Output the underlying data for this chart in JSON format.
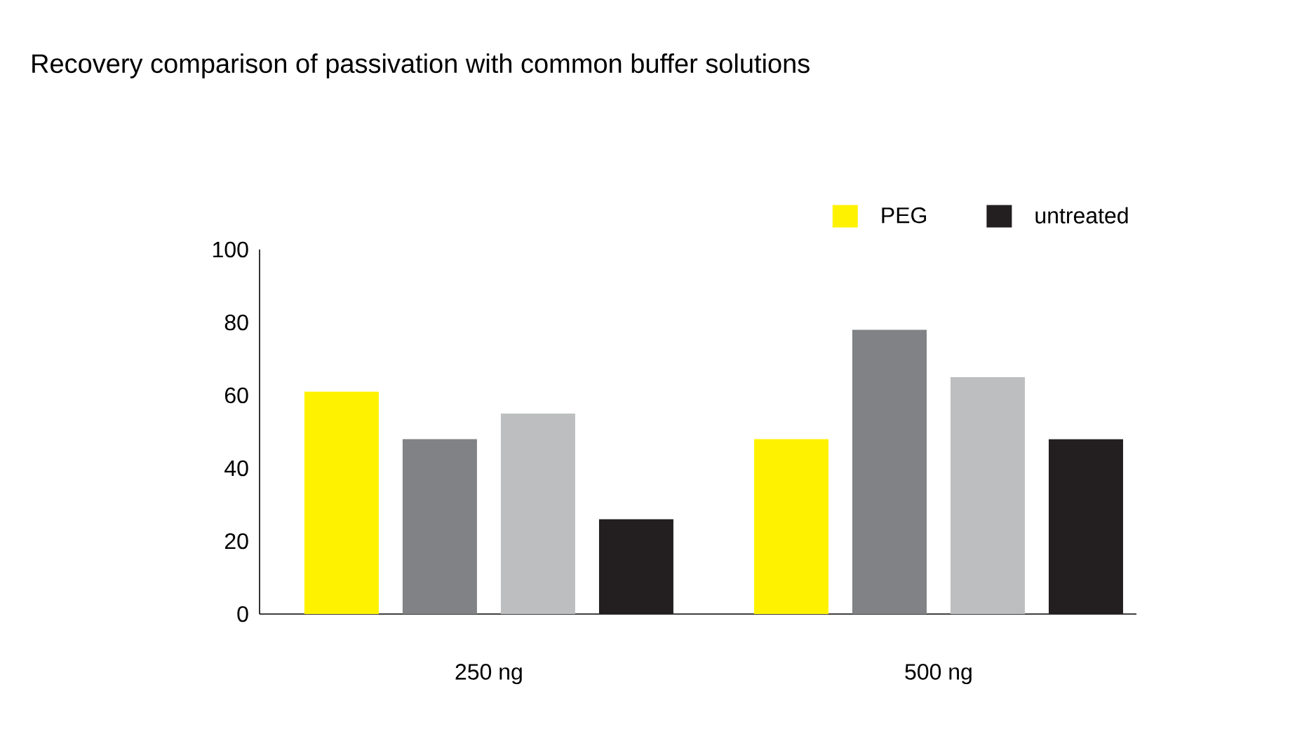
{
  "chart_data": {
    "type": "bar",
    "title": "Recovery comparison of passivation with common buffer solutions",
    "categories": [
      "250 ng",
      "500 ng"
    ],
    "series": [
      {
        "name": "PEG",
        "color": "#fff200",
        "values": [
          61,
          48
        ]
      },
      {
        "color": "#808285",
        "values": [
          48,
          78
        ]
      },
      {
        "color": "#bcbec0",
        "values": [
          55,
          65
        ]
      },
      {
        "name": "untreated",
        "color": "#231f20",
        "values": [
          26,
          48
        ]
      }
    ],
    "ylim": [
      0,
      100
    ],
    "yticks": [
      0,
      20,
      40,
      60,
      80,
      100
    ],
    "grid": false,
    "legend": "top right"
  }
}
